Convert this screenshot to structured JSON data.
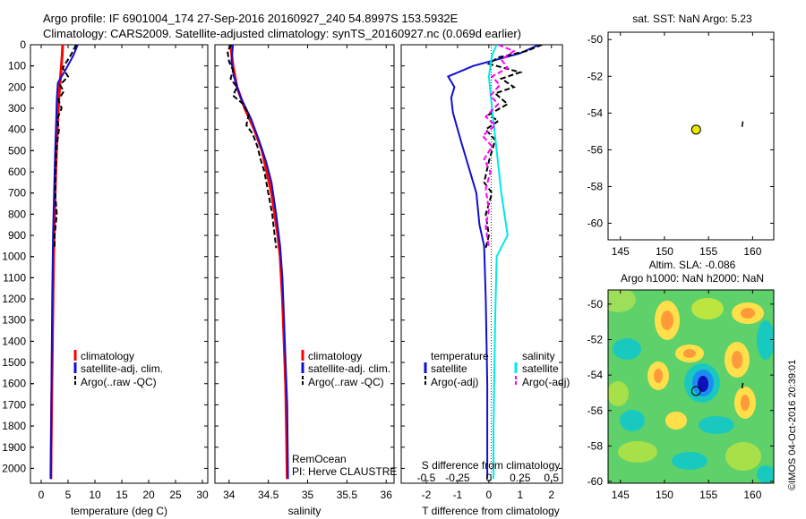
{
  "header": {
    "line1": "Argo profile: IF 6901004_174 27-Sep-2016 20160927_240 54.8997S 153.5932E",
    "line2": "Climatology: CARS2009. Satellite-adjusted climatology: synTS_20160927.nc (0.069d earlier)"
  },
  "colors": {
    "climatology": "#ff0000",
    "satellite": "#1010d0",
    "argo": "#000000",
    "sal_satellite": "#00e8e8",
    "sal_argo": "#ff00ff",
    "marker_fill": "#e8e800"
  },
  "depth_ticks": [
    0,
    100,
    200,
    300,
    400,
    500,
    600,
    700,
    800,
    900,
    1000,
    1100,
    1200,
    1300,
    1400,
    1500,
    1600,
    1700,
    1800,
    1900,
    2000
  ],
  "panel_temp": {
    "xlabel": "temperature (deg C)",
    "xticks": [
      0,
      5,
      10,
      15,
      20,
      25,
      30
    ],
    "legend": [
      "climatology",
      "satellite-adj. clim.",
      "Argo(..raw -QC)"
    ]
  },
  "panel_sal": {
    "xlabel": "salinity",
    "xticks": [
      "34",
      "34.5",
      "35",
      "35.5",
      "36"
    ],
    "legend": [
      "climatology",
      "satellite-adj. clim.",
      "Argo(..raw -QC)"
    ],
    "credit1": "RemOcean",
    "credit2": "PI: Herve CLAUSTRE"
  },
  "panel_diff": {
    "xlabel": "T difference from climatology",
    "xticks": [
      "-2",
      "-1",
      "0",
      "1",
      "2"
    ],
    "top_label": "S difference from climatology",
    "top_ticks": [
      "-0.5",
      "-0.25",
      "0",
      "0.25",
      "0.5"
    ],
    "legend_temp_head": "temperature",
    "legend_sal_head": "salinity",
    "legend_sat": "satellite",
    "legend_argo": "Argo(-adj)"
  },
  "map_sst": {
    "title": "sat. SST: NaN Argo: 5.23",
    "yticks": [
      "-50",
      "-52",
      "-54",
      "-56",
      "-58",
      "-60"
    ],
    "xticks": [
      "145",
      "150",
      "155",
      "160"
    ]
  },
  "map_sla": {
    "title1": "Altim. SLA: -0.086",
    "title2": "Argo h1000: NaN h2000: NaN",
    "yticks": [
      "-50",
      "-52",
      "-54",
      "-56",
      "-58",
      "-60"
    ],
    "xticks": [
      "145",
      "150",
      "155",
      "160"
    ]
  },
  "stamp": "©IMOS 04-Oct-2016 20:39:01",
  "chart_data": [
    {
      "type": "line",
      "title": "temperature (deg C)",
      "xlabel": "temperature (deg C)",
      "ylabel": "",
      "xlim": [
        -2,
        31
      ],
      "ylim": [
        2070,
        0
      ],
      "series": [
        {
          "name": "climatology",
          "points": [
            [
              4.0,
              0
            ],
            [
              3.9,
              50
            ],
            [
              3.6,
              150
            ],
            [
              3.3,
              250
            ],
            [
              3.0,
              400
            ],
            [
              2.7,
              600
            ],
            [
              2.5,
              800
            ],
            [
              2.3,
              1000
            ],
            [
              2.15,
              1300
            ],
            [
              2.0,
              1600
            ],
            [
              1.85,
              1900
            ],
            [
              1.8,
              2050
            ]
          ]
        },
        {
          "name": "satellite-adj. clim.",
          "points": [
            [
              6.8,
              0
            ],
            [
              6.0,
              50
            ],
            [
              4.5,
              120
            ],
            [
              3.1,
              180
            ],
            [
              2.9,
              260
            ],
            [
              2.8,
              350
            ],
            [
              2.6,
              500
            ],
            [
              2.4,
              700
            ],
            [
              2.2,
              900
            ],
            [
              2.05,
              1200
            ],
            [
              1.95,
              1500
            ],
            [
              1.85,
              1800
            ],
            [
              1.8,
              2050
            ]
          ]
        },
        {
          "name": "Argo(..raw -QC)",
          "points": [
            [
              6.5,
              0
            ],
            [
              5.5,
              50
            ],
            [
              4.0,
              110
            ],
            [
              5.0,
              150
            ],
            [
              3.5,
              190
            ],
            [
              4.2,
              220
            ],
            [
              3.2,
              260
            ],
            [
              3.8,
              300
            ],
            [
              3.0,
              350
            ],
            [
              3.3,
              400
            ],
            [
              2.8,
              500
            ],
            [
              2.7,
              600
            ],
            [
              2.6,
              700
            ],
            [
              2.9,
              800
            ],
            [
              2.5,
              900
            ],
            [
              2.5,
              960
            ]
          ]
        }
      ]
    },
    {
      "type": "line",
      "title": "salinity",
      "xlabel": "salinity",
      "ylabel": "",
      "xlim": [
        33.82,
        36.1
      ],
      "ylim": [
        2070,
        0
      ],
      "series": [
        {
          "name": "climatology",
          "points": [
            [
              34.02,
              0
            ],
            [
              34.05,
              100
            ],
            [
              34.1,
              200
            ],
            [
              34.2,
              300
            ],
            [
              34.32,
              400
            ],
            [
              34.42,
              500
            ],
            [
              34.48,
              600
            ],
            [
              34.54,
              700
            ],
            [
              34.58,
              800
            ],
            [
              34.62,
              900
            ],
            [
              34.65,
              1000
            ],
            [
              34.68,
              1200
            ],
            [
              34.7,
              1400
            ],
            [
              34.72,
              1600
            ],
            [
              34.73,
              1800
            ],
            [
              34.74,
              2050
            ]
          ]
        },
        {
          "name": "satellite-adj. clim.",
          "points": [
            [
              34.05,
              0
            ],
            [
              34.03,
              80
            ],
            [
              34.06,
              150
            ],
            [
              34.15,
              250
            ],
            [
              34.28,
              350
            ],
            [
              34.38,
              450
            ],
            [
              34.47,
              550
            ],
            [
              34.54,
              650
            ],
            [
              34.6,
              800
            ],
            [
              34.65,
              950
            ],
            [
              34.68,
              1100
            ],
            [
              34.7,
              1300
            ],
            [
              34.72,
              1500
            ],
            [
              34.74,
              1700
            ],
            [
              34.75,
              2050
            ]
          ]
        },
        {
          "name": "Argo(..raw -QC)",
          "points": [
            [
              34.03,
              0
            ],
            [
              33.98,
              30
            ],
            [
              34.0,
              80
            ],
            [
              34.05,
              120
            ],
            [
              34.02,
              160
            ],
            [
              34.1,
              200
            ],
            [
              34.05,
              240
            ],
            [
              34.18,
              280
            ],
            [
              34.25,
              330
            ],
            [
              34.22,
              380
            ],
            [
              34.3,
              420
            ],
            [
              34.36,
              480
            ],
            [
              34.4,
              540
            ],
            [
              34.45,
              600
            ],
            [
              34.5,
              700
            ],
            [
              34.55,
              800
            ],
            [
              34.58,
              900
            ],
            [
              34.6,
              960
            ]
          ]
        }
      ]
    },
    {
      "type": "line",
      "title": "T difference from climatology",
      "xlabel": "T difference from climatology",
      "ylabel": "",
      "xlim": [
        -2.8,
        2.35
      ],
      "ylim": [
        2070,
        0
      ],
      "series": [
        {
          "name": "temperature satellite",
          "points": [
            [
              1.6,
              0
            ],
            [
              1.0,
              40
            ],
            [
              -0.5,
              100
            ],
            [
              -1.3,
              150
            ],
            [
              -1.1,
              200
            ],
            [
              -1.2,
              250
            ],
            [
              -1.15,
              320
            ],
            [
              -0.9,
              450
            ],
            [
              -0.6,
              600
            ],
            [
              -0.4,
              700
            ],
            [
              -0.3,
              850
            ],
            [
              -0.15,
              950
            ],
            [
              -0.1,
              1200
            ],
            [
              -0.05,
              1600
            ],
            [
              -0.05,
              2050
            ]
          ]
        },
        {
          "name": "temperature Argo(-adj)",
          "points": [
            [
              1.7,
              0
            ],
            [
              1.2,
              30
            ],
            [
              0.3,
              60
            ],
            [
              0.0,
              90
            ],
            [
              1.0,
              130
            ],
            [
              0.4,
              160
            ],
            [
              0.8,
              200
            ],
            [
              0.2,
              230
            ],
            [
              0.6,
              280
            ],
            [
              0.0,
              330
            ],
            [
              0.3,
              360
            ],
            [
              -0.1,
              400
            ],
            [
              0.2,
              450
            ],
            [
              0.0,
              550
            ],
            [
              -0.15,
              650
            ],
            [
              0.1,
              700
            ],
            [
              -0.1,
              800
            ],
            [
              0.0,
              900
            ],
            [
              -0.1,
              960
            ]
          ]
        },
        {
          "name": "salinity satellite",
          "points": [
            [
              0.25,
              0
            ],
            [
              0.1,
              50
            ],
            [
              0.0,
              150
            ],
            [
              0.1,
              300
            ],
            [
              0.25,
              500
            ],
            [
              0.4,
              700
            ],
            [
              0.6,
              900
            ],
            [
              0.25,
              1000
            ],
            [
              0.2,
              1300
            ],
            [
              0.15,
              1800
            ],
            [
              0.15,
              2050
            ]
          ]
        },
        {
          "name": "salinity Argo(-adj)",
          "points": [
            [
              0.3,
              0
            ],
            [
              0.8,
              30
            ],
            [
              0.4,
              70
            ],
            [
              0.6,
              110
            ],
            [
              0.1,
              150
            ],
            [
              0.35,
              190
            ],
            [
              0.05,
              240
            ],
            [
              0.3,
              280
            ],
            [
              -0.1,
              340
            ],
            [
              0.2,
              380
            ],
            [
              -0.2,
              430
            ],
            [
              0.1,
              480
            ],
            [
              -0.15,
              540
            ],
            [
              0.05,
              600
            ],
            [
              -0.1,
              680
            ],
            [
              0.0,
              780
            ],
            [
              -0.1,
              860
            ],
            [
              0.0,
              960
            ]
          ]
        }
      ]
    },
    {
      "type": "scatter",
      "title": "sat. SST: NaN Argo: 5.23",
      "xlabel": "",
      "ylabel": "",
      "xlim": [
        143.6,
        162.4
      ],
      "ylim": [
        -60.9,
        -49.6
      ],
      "series": [
        {
          "name": "Argo position",
          "points": [
            [
              153.59,
              -54.9
            ]
          ]
        }
      ]
    },
    {
      "type": "heatmap",
      "title": "Altim. SLA: -0.086",
      "xlabel": "",
      "ylabel": "",
      "xlim": [
        143.6,
        162.4
      ],
      "ylim": [
        -60.1,
        -49.2
      ],
      "series": [
        {
          "name": "Argo position",
          "points": [
            [
              153.59,
              -54.9
            ]
          ]
        }
      ]
    }
  ]
}
